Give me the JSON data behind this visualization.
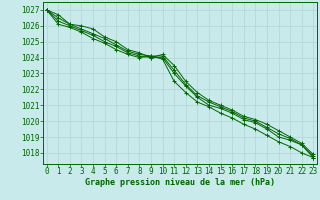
{
  "title": "Graphe pression niveau de la mer (hPa)",
  "background_color": "#c8eaea",
  "grid_color": "#b0d4d4",
  "line_color": "#006600",
  "marker_color": "#006600",
  "x_ticks": [
    0,
    1,
    2,
    3,
    4,
    5,
    6,
    7,
    8,
    9,
    10,
    11,
    12,
    13,
    14,
    15,
    16,
    17,
    18,
    19,
    20,
    21,
    22,
    23
  ],
  "y_ticks": [
    1018,
    1019,
    1020,
    1021,
    1022,
    1023,
    1024,
    1025,
    1026,
    1027
  ],
  "ylim": [
    1017.3,
    1027.5
  ],
  "xlim": [
    -0.3,
    23.3
  ],
  "series": [
    [
      1027.0,
      1026.7,
      1026.1,
      1026.0,
      1025.8,
      1025.3,
      1025.0,
      1024.5,
      1024.3,
      1024.0,
      1024.0,
      1023.0,
      1022.2,
      1021.5,
      1021.0,
      1020.8,
      1020.5,
      1020.1,
      1019.9,
      1019.5,
      1019.0,
      1018.8,
      1018.5,
      1017.7
    ],
    [
      1027.0,
      1026.5,
      1026.1,
      1025.8,
      1025.5,
      1025.2,
      1024.8,
      1024.4,
      1024.2,
      1024.1,
      1024.1,
      1023.2,
      1022.3,
      1021.6,
      1021.2,
      1020.9,
      1020.6,
      1020.2,
      1020.0,
      1019.6,
      1019.2,
      1018.9,
      1018.5,
      1017.8
    ],
    [
      1027.0,
      1026.3,
      1026.0,
      1025.7,
      1025.4,
      1025.0,
      1024.7,
      1024.3,
      1024.1,
      1024.0,
      1024.2,
      1023.5,
      1022.5,
      1021.8,
      1021.3,
      1021.0,
      1020.7,
      1020.3,
      1020.1,
      1019.8,
      1019.4,
      1019.0,
      1018.6,
      1017.9
    ],
    [
      1027.0,
      1026.1,
      1025.9,
      1025.6,
      1025.2,
      1024.9,
      1024.5,
      1024.2,
      1024.0,
      1024.1,
      1023.9,
      1022.5,
      1021.8,
      1021.2,
      1020.9,
      1020.5,
      1020.2,
      1019.8,
      1019.5,
      1019.1,
      1018.7,
      1018.4,
      1018.0,
      1017.7
    ]
  ],
  "title_fontsize": 6.0,
  "tick_fontsize": 5.5
}
